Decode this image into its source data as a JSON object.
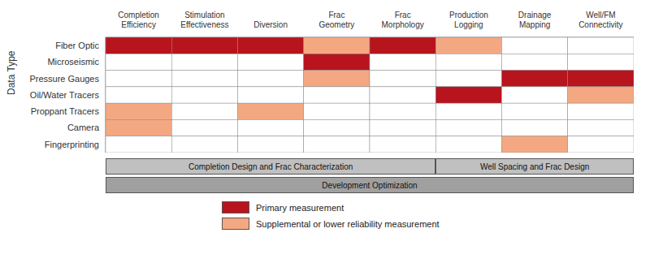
{
  "chart_data": {
    "type": "heatmap",
    "ylabel": "Data Type",
    "y_categories": [
      "Fiber Optic",
      "Microseismic",
      "Pressure Gauges",
      "Oil/Water Tracers",
      "Proppant Tracers",
      "Camera",
      "Fingerprinting"
    ],
    "x_categories": [
      "Completion\nEfficiency",
      "Stimulation\nEffectiveness",
      "Diversion",
      "Frac\nGeometry",
      "Frac\nMorphology",
      "Production\nLogging",
      "Drainage\nMapping",
      "Well/FM\nConnectivity"
    ],
    "cells": [
      [
        2,
        2,
        2,
        1,
        2,
        1,
        0,
        0
      ],
      [
        0,
        0,
        0,
        2,
        0,
        0,
        0,
        0
      ],
      [
        0,
        0,
        0,
        1,
        0,
        0,
        2,
        2
      ],
      [
        0,
        0,
        0,
        0,
        0,
        2,
        0,
        1
      ],
      [
        1,
        0,
        1,
        0,
        0,
        0,
        0,
        0
      ],
      [
        1,
        0,
        0,
        0,
        0,
        0,
        0,
        0
      ],
      [
        0,
        0,
        0,
        0,
        0,
        0,
        1,
        0
      ]
    ],
    "levels": [
      {
        "value": 2,
        "label": "Primary measurement",
        "color": "#b8141e"
      },
      {
        "value": 1,
        "label": "Supplemental or lower reliability measurement",
        "color": "#f4a882"
      },
      {
        "value": 0,
        "color": "#ffffff"
      }
    ],
    "column_groups": [
      {
        "label": "Completion Design and Frac Characterization",
        "col_start": 0,
        "col_end": 4,
        "color": "#c0c0c0"
      },
      {
        "label": "Well Spacing and Frac Design",
        "col_start": 5,
        "col_end": 7,
        "color": "#c0c0c0"
      }
    ],
    "spanning_bar": {
      "label": "Development Optimization",
      "color": "#a0a0a0"
    }
  }
}
